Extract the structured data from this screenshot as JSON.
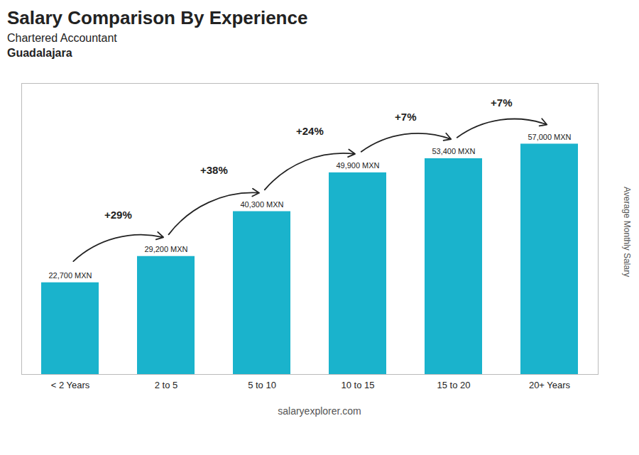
{
  "chart_data": {
    "type": "bar",
    "title": "Salary Comparison By Experience",
    "subtitle": [
      "Chartered Accountant",
      "Guadalajara"
    ],
    "caption": "salaryexplorer.com",
    "ylabel": "Average Monthly Salary",
    "categories": [
      "< 2 Years",
      "2 to 5",
      "5 to 10",
      "10 to 15",
      "15 to 20",
      "20+ Years"
    ],
    "values": [
      22700,
      29200,
      40300,
      49900,
      53400,
      57000
    ],
    "value_labels": [
      "22,700 MXN",
      "29,200 MXN",
      "40,300 MXN",
      "49,900 MXN",
      "53,400 MXN",
      "57,000 MXN"
    ],
    "data_labels": true,
    "annotations": [
      null,
      "+29%",
      "+38%",
      "+24%",
      "+7%",
      "+7%"
    ],
    "color": "#1ab3cc",
    "ylim": [
      0,
      72000
    ],
    "tick_labels": "x",
    "grid": false
  }
}
